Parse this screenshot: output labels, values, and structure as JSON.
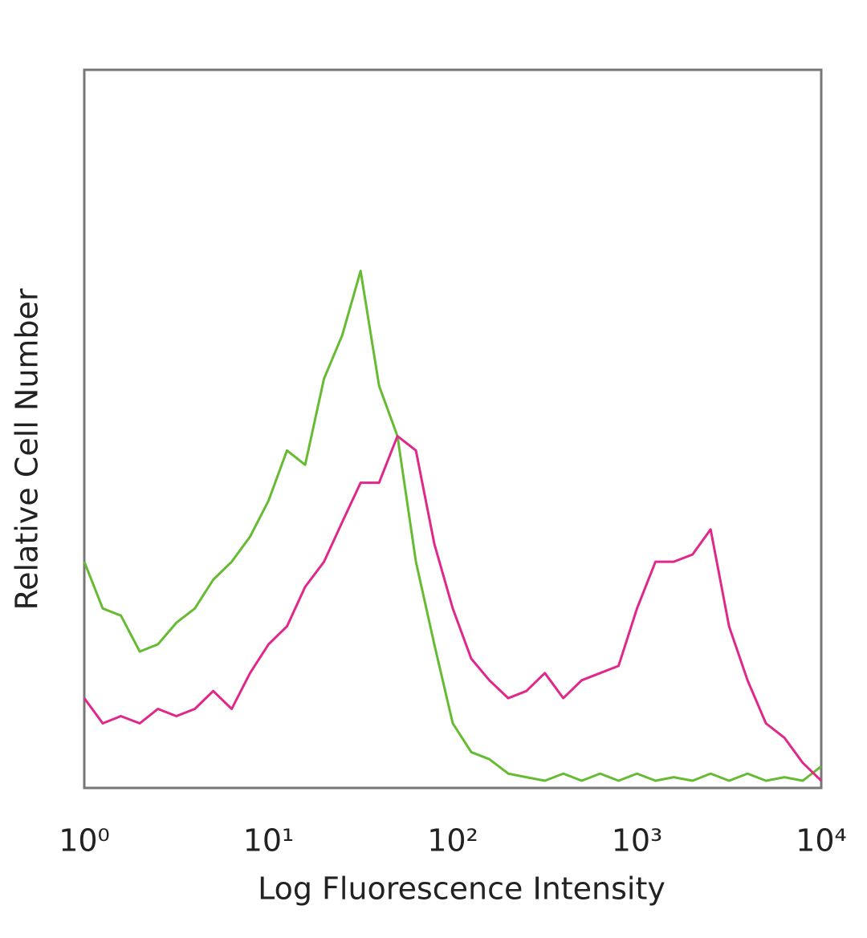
{
  "chart_data": {
    "type": "line",
    "x_label": "Log Fluorescence Intensity",
    "y_label": "Relative Cell Number",
    "xscale": "log",
    "xlim": [
      1,
      10000
    ],
    "xticks": [
      {
        "value": 1,
        "label": "10⁰"
      },
      {
        "value": 10,
        "label": "10¹"
      },
      {
        "value": 100,
        "label": "10²"
      },
      {
        "value": 1000,
        "label": "10³"
      },
      {
        "value": 10000,
        "label": "10⁴"
      }
    ],
    "ylim": [
      0,
      100
    ],
    "grid": false,
    "x": [
      1,
      1.26,
      1.58,
      2,
      2.51,
      3.16,
      3.98,
      5.01,
      6.31,
      7.94,
      10,
      12.6,
      15.8,
      20,
      25.1,
      31.6,
      39.8,
      50.1,
      63.1,
      79.4,
      100,
      126,
      158,
      200,
      251,
      316,
      398,
      501,
      631,
      794,
      1000,
      1260,
      1580,
      2000,
      2510,
      3160,
      3980,
      5010,
      6310,
      7940,
      10000
    ],
    "series": [
      {
        "color": "#66bb33",
        "values": [
          31.5,
          25,
          24,
          19,
          20,
          23,
          25,
          29,
          31.5,
          35,
          40,
          47,
          45,
          57,
          63,
          72,
          56,
          49,
          31.5,
          20,
          9,
          5,
          4,
          2,
          1.5,
          1,
          2,
          1,
          2,
          1,
          2,
          1,
          1.5,
          1,
          2,
          1,
          2,
          1,
          1.5,
          1,
          3
        ]
      },
      {
        "color": "#e0288a",
        "values": [
          12.5,
          9,
          10,
          9,
          11,
          10,
          11,
          13.5,
          11,
          16,
          20,
          22.5,
          28,
          31.5,
          37,
          42.5,
          42.5,
          49,
          47,
          34,
          25,
          18,
          15,
          12.5,
          13.5,
          16,
          12.5,
          15,
          16,
          17,
          25,
          31.5,
          31.5,
          32.5,
          36,
          22.5,
          15,
          9,
          7,
          3.5,
          1
        ]
      }
    ]
  }
}
